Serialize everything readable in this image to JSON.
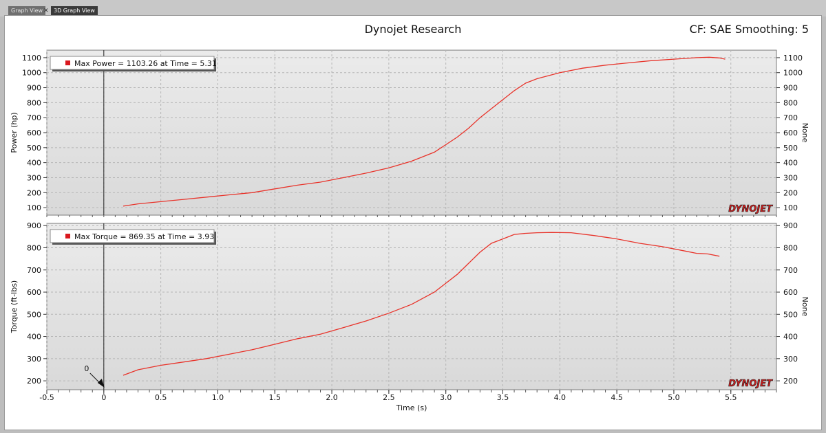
{
  "tabs": [
    {
      "label": "Graph View"
    },
    {
      "label": "3D Graph View"
    }
  ],
  "header": {
    "title": "Dynojet Research",
    "cf": "CF: SAE Smoothing: 5"
  },
  "logo": "DYNOJET",
  "marker_label": "0",
  "colors": {
    "series": "#e8332a",
    "marker": "#d9181e",
    "plot_bg_a": "#ebebeb",
    "plot_bg_b": "#d9d9d9"
  },
  "chart_data": [
    {
      "type": "line",
      "title": "",
      "xlabel": "Time (s)",
      "ylabel": "Power (hp)",
      "right_label": "None",
      "legend": "Max Power = 1103.26 at Time = 5.31",
      "xlim": [
        -0.5,
        5.9
      ],
      "ylim": [
        50,
        1150
      ],
      "yticks": [
        100,
        200,
        300,
        400,
        500,
        600,
        700,
        800,
        900,
        1000,
        1100
      ],
      "grid": true,
      "series": [
        {
          "x": [
            0.17,
            0.3,
            0.5,
            0.7,
            0.9,
            1.1,
            1.3,
            1.5,
            1.7,
            1.9,
            2.1,
            2.3,
            2.5,
            2.7,
            2.9,
            3.0,
            3.1,
            3.2,
            3.3,
            3.4,
            3.5,
            3.6,
            3.7,
            3.8,
            3.9,
            4.0,
            4.2,
            4.4,
            4.6,
            4.8,
            5.0,
            5.2,
            5.31,
            5.4,
            5.45
          ],
          "y": [
            110,
            125,
            140,
            155,
            170,
            185,
            200,
            225,
            250,
            270,
            300,
            330,
            365,
            410,
            470,
            520,
            570,
            630,
            700,
            760,
            820,
            880,
            930,
            960,
            980,
            1000,
            1030,
            1050,
            1065,
            1080,
            1090,
            1100,
            1103,
            1098,
            1090
          ]
        }
      ]
    },
    {
      "type": "line",
      "title": "",
      "xlabel": "Time (s)",
      "ylabel": "Torque (ft-lbs)",
      "right_label": "None",
      "legend": "Max Torque = 869.35 at Time = 3.93",
      "xlim": [
        -0.5,
        5.9
      ],
      "ylim": [
        160,
        910
      ],
      "yticks": [
        200,
        300,
        400,
        500,
        600,
        700,
        800,
        900
      ],
      "xticks": [
        -0.5,
        0,
        0.5,
        1.0,
        1.5,
        2.0,
        2.5,
        3.0,
        3.5,
        4.0,
        4.5,
        5.0,
        5.5
      ],
      "xticklabels": [
        "-0.5",
        "0",
        "0.5",
        "1.0",
        "1.5",
        "2.0",
        "2.5",
        "3.0",
        "3.5",
        "4.0",
        "4.5",
        "5.0",
        "5.5"
      ],
      "grid": true,
      "series": [
        {
          "x": [
            0.17,
            0.3,
            0.5,
            0.7,
            0.9,
            1.1,
            1.3,
            1.5,
            1.7,
            1.9,
            2.1,
            2.3,
            2.5,
            2.7,
            2.9,
            3.0,
            3.1,
            3.2,
            3.3,
            3.4,
            3.5,
            3.6,
            3.7,
            3.8,
            3.93,
            4.1,
            4.3,
            4.5,
            4.7,
            4.9,
            5.1,
            5.2,
            5.3,
            5.4
          ],
          "y": [
            225,
            250,
            270,
            285,
            300,
            320,
            340,
            365,
            390,
            410,
            440,
            470,
            505,
            545,
            600,
            640,
            680,
            730,
            780,
            820,
            840,
            860,
            865,
            868,
            869,
            868,
            855,
            840,
            820,
            805,
            785,
            775,
            772,
            762
          ]
        }
      ]
    }
  ]
}
